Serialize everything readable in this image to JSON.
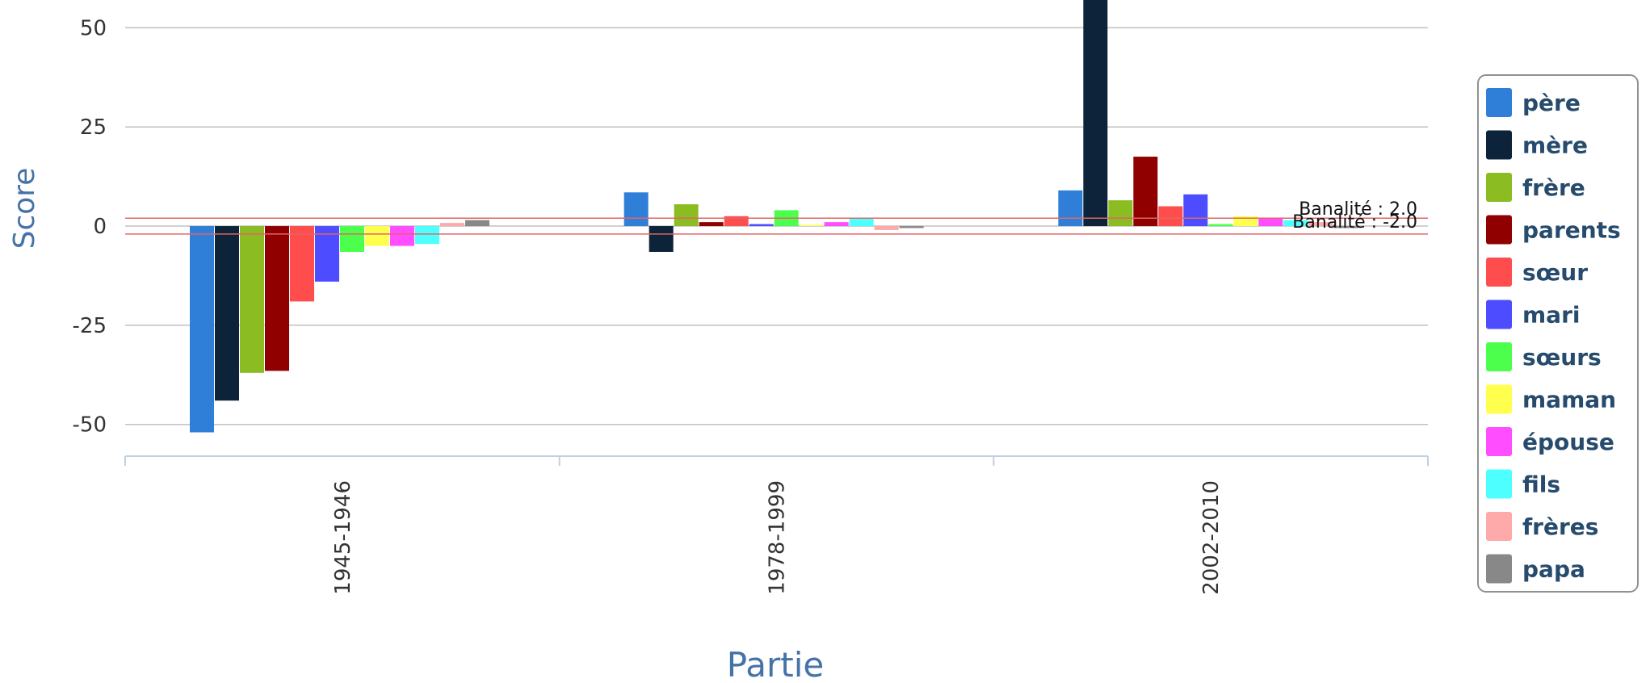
{
  "chart_data": {
    "type": "bar",
    "categories": [
      "1945-1946",
      "1978-1999",
      "2002-2010"
    ],
    "xlabel": "Partie",
    "ylabel": "Score",
    "ylim": [
      -58,
      57
    ],
    "yticks": [
      -50,
      -25,
      0,
      25,
      50
    ],
    "grid": true,
    "legend_position": "right",
    "series": [
      {
        "name": "père",
        "color": "#2f7ed8",
        "values": [
          -52,
          8.5,
          9
        ]
      },
      {
        "name": "mère",
        "color": "#0d233a",
        "values": [
          -44,
          -6.5,
          60
        ]
      },
      {
        "name": "frère",
        "color": "#8bbc21",
        "values": [
          -37,
          5.5,
          6.5
        ]
      },
      {
        "name": "parents",
        "color": "#910000",
        "values": [
          -36.5,
          1,
          17.5
        ]
      },
      {
        "name": "sœur",
        "color": "#ff4d4d",
        "values": [
          -19,
          2.5,
          5
        ]
      },
      {
        "name": "mari",
        "color": "#4d4dff",
        "values": [
          -14,
          0.5,
          8
        ]
      },
      {
        "name": "sœurs",
        "color": "#4dff4d",
        "values": [
          -6.5,
          4,
          0.5
        ]
      },
      {
        "name": "maman",
        "color": "#ffff4d",
        "values": [
          -5,
          0.3,
          2.5
        ]
      },
      {
        "name": "épouse",
        "color": "#ff4dff",
        "values": [
          -5,
          1,
          2
        ]
      },
      {
        "name": "fils",
        "color": "#4dffff",
        "values": [
          -4.5,
          2,
          1.5
        ]
      },
      {
        "name": "frères",
        "color": "#ffaaaa",
        "values": [
          0.8,
          -1,
          1
        ]
      },
      {
        "name": "papa",
        "color": "#888888",
        "values": [
          1.5,
          -0.5,
          -0.5
        ]
      }
    ],
    "plot_lines": [
      {
        "label": "Banalité : 2.0",
        "value": 2,
        "color": "#e06666"
      },
      {
        "label": "Banalité : -2.0",
        "value": -2,
        "color": "#e06666"
      }
    ]
  }
}
